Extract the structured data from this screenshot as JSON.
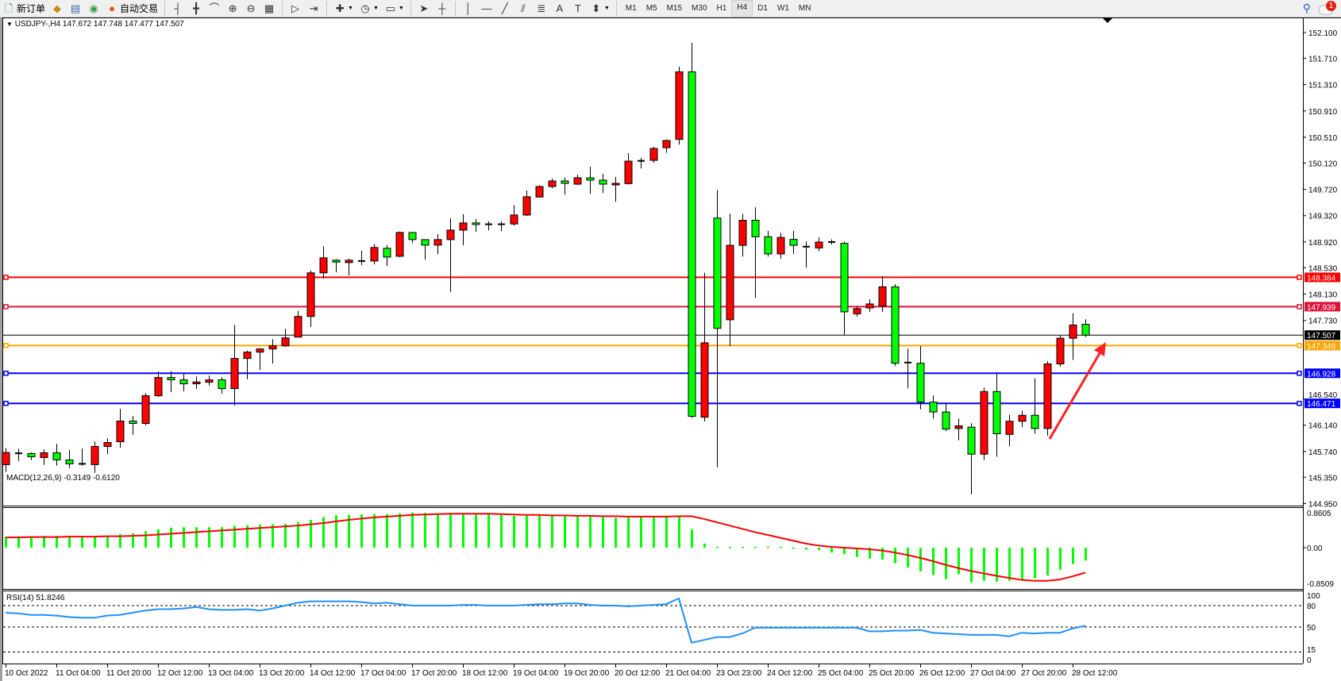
{
  "toolbar": {
    "items": [
      {
        "icon": "new-order-icon",
        "glyph": "🗋",
        "label": "新订单",
        "color": "#2a9a2a"
      },
      {
        "icon": "market-watch-icon",
        "glyph": "◆",
        "label": "",
        "color": "#d08a10"
      },
      {
        "icon": "data-window-icon",
        "glyph": "▤",
        "label": "",
        "color": "#3a6ab0"
      },
      {
        "icon": "navigator-icon",
        "glyph": "◉",
        "label": "",
        "color": "#3a9a4a"
      },
      {
        "icon": "autotrading-icon",
        "glyph": "●",
        "label": "自动交易",
        "color": "#e05010"
      }
    ],
    "chart_tools": [
      {
        "icon": "bar-chart-icon",
        "glyph": "┤"
      },
      {
        "icon": "candlestick-chart-icon",
        "glyph": "╋"
      },
      {
        "icon": "line-chart-icon",
        "glyph": "⌒"
      },
      {
        "icon": "zoom-in-icon",
        "glyph": "⊕"
      },
      {
        "icon": "zoom-out-icon",
        "glyph": "⊖"
      },
      {
        "icon": "tile-windows-icon",
        "glyph": "▦"
      }
    ],
    "scroll_tools": [
      {
        "icon": "auto-scroll-icon",
        "glyph": "▷"
      },
      {
        "icon": "chart-shift-icon",
        "glyph": "⇥"
      }
    ],
    "dropdowns": [
      {
        "icon": "indicators-icon",
        "glyph": "✚"
      },
      {
        "icon": "periods-clock-icon",
        "glyph": "◷"
      },
      {
        "icon": "templates-icon",
        "glyph": "▭"
      }
    ],
    "draw_tools": [
      {
        "icon": "cursor-icon",
        "glyph": "➤"
      },
      {
        "icon": "crosshair-icon",
        "glyph": "┼"
      },
      {
        "icon": "vertical-line-icon",
        "glyph": "│"
      },
      {
        "icon": "horizontal-line-icon",
        "glyph": "—"
      },
      {
        "icon": "trendline-icon",
        "glyph": "╱"
      },
      {
        "icon": "equidistant-channel-icon",
        "glyph": "⫽"
      },
      {
        "icon": "fibonacci-icon",
        "glyph": "≣"
      },
      {
        "icon": "text-icon",
        "glyph": "A"
      },
      {
        "icon": "text-label-icon",
        "glyph": "T"
      },
      {
        "icon": "arrows-icon",
        "glyph": "⬍"
      }
    ],
    "timeframes": [
      "M1",
      "M5",
      "M15",
      "M30",
      "H1",
      "H4",
      "D1",
      "W1",
      "MN"
    ],
    "active_timeframe": "H4",
    "notification_count": "1"
  },
  "chart": {
    "symbol_header": "USDJPY-,H4  147.672 147.748 147.477 147.507",
    "bull_color": "#ff0000",
    "bear_color": "#00ff00",
    "price_axis": [
      "152.100",
      "151.710",
      "151.310",
      "150.910",
      "150.510",
      "150.120",
      "149.720",
      "149.320",
      "148.920",
      "148.530",
      "148.130",
      "147.730",
      "146.540",
      "146.140",
      "145.740",
      "145.350",
      "144.950"
    ],
    "levels": [
      {
        "price": "148.384",
        "color": "#ff0000"
      },
      {
        "price": "147.939",
        "color": "#dc143c"
      },
      {
        "price": "147.349",
        "color": "#ffa500"
      },
      {
        "price": "146.928",
        "color": "#0000ff"
      },
      {
        "price": "146.471",
        "color": "#0000ff"
      }
    ],
    "bid": {
      "price": "147.507",
      "color": "#000000"
    },
    "arrow_color": "#ff2020",
    "time_axis": [
      "10 Oct 2022",
      "11 Oct 04:00",
      "11 Oct 20:00",
      "12 Oct 12:00",
      "13 Oct 04:00",
      "13 Oct 20:00",
      "14 Oct 12:00",
      "17 Oct 04:00",
      "17 Oct 20:00",
      "18 Oct 12:00",
      "19 Oct 04:00",
      "19 Oct 20:00",
      "20 Oct 12:00",
      "21 Oct 04:00",
      "23 Oct 23:00",
      "24 Oct 12:00",
      "25 Oct 04:00",
      "25 Oct 20:00",
      "26 Oct 12:00",
      "27 Oct 04:00",
      "27 Oct 20:00",
      "28 Oct 12:00"
    ]
  },
  "macd": {
    "label": "MACD(12,26,9) -0.3149 -0.6120",
    "axis": [
      "0.8605",
      "0.00",
      "-0.8509"
    ],
    "max": 0.8605,
    "min": -0.8509,
    "hist_color": "#00ff00",
    "signal_color": "#ff0000",
    "main": [
      0.27,
      0.28,
      0.28,
      0.29,
      0.29,
      0.29,
      0.28,
      0.29,
      0.3,
      0.33,
      0.35,
      0.4,
      0.45,
      0.49,
      0.5,
      0.5,
      0.5,
      0.5,
      0.53,
      0.55,
      0.56,
      0.57,
      0.58,
      0.62,
      0.68,
      0.75,
      0.79,
      0.8,
      0.81,
      0.82,
      0.82,
      0.84,
      0.86,
      0.85,
      0.84,
      0.84,
      0.85,
      0.84,
      0.82,
      0.8,
      0.78,
      0.78,
      0.79,
      0.78,
      0.77,
      0.76,
      0.76,
      0.75,
      0.73,
      0.74,
      0.76,
      0.76,
      0.77,
      0.78,
      0.45,
      0.1,
      0.02,
      0.02,
      0.02,
      0.02,
      0.02,
      0.02,
      -0.03,
      -0.05,
      -0.06,
      -0.12,
      -0.16,
      -0.23,
      -0.27,
      -0.29,
      -0.38,
      -0.48,
      -0.58,
      -0.67,
      -0.77,
      -0.65,
      -0.85,
      -0.81,
      -0.83,
      -0.81,
      -0.79,
      -0.75,
      -0.68,
      -0.54,
      -0.4,
      -0.3149
    ],
    "signal": [
      0.25,
      0.25,
      0.26,
      0.26,
      0.26,
      0.27,
      0.27,
      0.27,
      0.28,
      0.28,
      0.29,
      0.3,
      0.32,
      0.34,
      0.36,
      0.38,
      0.4,
      0.42,
      0.44,
      0.46,
      0.48,
      0.5,
      0.52,
      0.54,
      0.57,
      0.6,
      0.64,
      0.68,
      0.71,
      0.74,
      0.76,
      0.78,
      0.8,
      0.81,
      0.82,
      0.83,
      0.83,
      0.83,
      0.83,
      0.82,
      0.81,
      0.8,
      0.8,
      0.79,
      0.79,
      0.78,
      0.78,
      0.77,
      0.77,
      0.76,
      0.76,
      0.76,
      0.76,
      0.77,
      0.77,
      0.7,
      0.62,
      0.54,
      0.46,
      0.38,
      0.31,
      0.24,
      0.17,
      0.1,
      0.05,
      0.02,
      0.0,
      -0.02,
      -0.04,
      -0.07,
      -0.12,
      -0.18,
      -0.25,
      -0.33,
      -0.42,
      -0.5,
      -0.57,
      -0.63,
      -0.69,
      -0.74,
      -0.79,
      -0.81,
      -0.81,
      -0.78,
      -0.7,
      -0.612
    ]
  },
  "rsi": {
    "label": "RSI(14) 51.8246",
    "axis": [
      "100",
      "80",
      "50",
      "15",
      "0"
    ],
    "levels": [
      80,
      50,
      15
    ],
    "color": "#1e90ff",
    "values": [
      70,
      69,
      67,
      67,
      66,
      64,
      63,
      63,
      66,
      67,
      70,
      73,
      75,
      75,
      76,
      78,
      75,
      74,
      74,
      75,
      73,
      76,
      80,
      84,
      86,
      86,
      86,
      86,
      85,
      83,
      84,
      82,
      80,
      80,
      80,
      80,
      81,
      81,
      80,
      80,
      80,
      81,
      82,
      82,
      83,
      83,
      81,
      80,
      80,
      79,
      80,
      81,
      82,
      90,
      28,
      32,
      36,
      36,
      41,
      49,
      49,
      49,
      49,
      49,
      49,
      49,
      49,
      49,
      44,
      44,
      45,
      45,
      46,
      42,
      41,
      40,
      39,
      39,
      39,
      37,
      42,
      41,
      42,
      42,
      48,
      51.8246
    ]
  },
  "chart_data": {
    "type": "candlestick",
    "ylim": [
      144.95,
      152.1
    ],
    "ohlc": [
      [
        145.541,
        145.793,
        145.432,
        145.725
      ],
      [
        145.713,
        145.785,
        145.597,
        145.713
      ],
      [
        145.709,
        145.725,
        145.609,
        145.661
      ],
      [
        145.649,
        145.773,
        145.536,
        145.721
      ],
      [
        145.721,
        145.857,
        145.525,
        145.613
      ],
      [
        145.613,
        145.761,
        145.488,
        145.553
      ],
      [
        145.553,
        145.785,
        145.525,
        145.541
      ],
      [
        145.541,
        145.893,
        145.416,
        145.817
      ],
      [
        145.817,
        145.938,
        145.701,
        145.877
      ],
      [
        145.889,
        146.387,
        145.797,
        146.202
      ],
      [
        146.202,
        146.278,
        145.994,
        146.166
      ],
      [
        146.166,
        146.627,
        146.138,
        146.587
      ],
      [
        146.587,
        146.952,
        146.567,
        146.864
      ],
      [
        146.864,
        146.96,
        146.643,
        146.828
      ],
      [
        146.828,
        146.916,
        146.655,
        146.768
      ],
      [
        146.768,
        146.88,
        146.691,
        146.796
      ],
      [
        146.792,
        146.892,
        146.74,
        146.828
      ],
      [
        146.828,
        146.868,
        146.619,
        146.695
      ],
      [
        146.695,
        147.662,
        146.439,
        147.153
      ],
      [
        147.153,
        147.273,
        146.836,
        147.249
      ],
      [
        147.249,
        147.309,
        146.98,
        147.297
      ],
      [
        147.297,
        147.445,
        147.076,
        147.345
      ],
      [
        147.345,
        147.602,
        147.329,
        147.465
      ],
      [
        147.477,
        147.874,
        147.477,
        147.79
      ],
      [
        147.79,
        148.488,
        147.63,
        148.452
      ],
      [
        148.452,
        148.853,
        148.364,
        148.68
      ],
      [
        148.644,
        148.66,
        148.46,
        148.616
      ],
      [
        148.608,
        148.668,
        148.412,
        148.644
      ],
      [
        148.632,
        148.789,
        148.572,
        148.632
      ],
      [
        148.632,
        148.889,
        148.58,
        148.837
      ],
      [
        148.825,
        148.873,
        148.556,
        148.692
      ],
      [
        148.704,
        149.081,
        148.688,
        149.065
      ],
      [
        149.065,
        149.065,
        148.905,
        148.957
      ],
      [
        148.957,
        148.957,
        148.652,
        148.873
      ],
      [
        148.873,
        149.041,
        148.737,
        148.957
      ],
      [
        148.957,
        149.282,
        148.159,
        149.101
      ],
      [
        149.101,
        149.342,
        148.869,
        149.21
      ],
      [
        149.21,
        149.27,
        149.073,
        149.186
      ],
      [
        149.19,
        149.234,
        149.097,
        149.19
      ],
      [
        149.19,
        149.234,
        149.085,
        149.19
      ],
      [
        149.194,
        149.478,
        149.17,
        149.33
      ],
      [
        149.33,
        149.703,
        149.314,
        149.607
      ],
      [
        149.603,
        149.779,
        149.603,
        149.763
      ],
      [
        149.763,
        149.883,
        149.735,
        149.847
      ],
      [
        149.847,
        149.899,
        149.639,
        149.811
      ],
      [
        149.799,
        149.944,
        149.783,
        149.895
      ],
      [
        149.895,
        150.064,
        149.651,
        149.859
      ],
      [
        149.859,
        149.956,
        149.663,
        149.799
      ],
      [
        149.787,
        149.907,
        149.531,
        149.811
      ],
      [
        149.807,
        150.268,
        149.795,
        150.148
      ],
      [
        150.152,
        150.196,
        150.036,
        150.152
      ],
      [
        150.16,
        150.365,
        150.124,
        150.34
      ],
      [
        150.352,
        150.477,
        150.276,
        150.461
      ],
      [
        150.478,
        151.58,
        150.4,
        151.503
      ],
      [
        151.503,
        151.944,
        146.25,
        146.274
      ],
      [
        146.261,
        148.454,
        146.196,
        147.39
      ],
      [
        149.284,
        149.71,
        145.5,
        147.61
      ],
      [
        147.74,
        149.35,
        147.34,
        148.87
      ],
      [
        148.87,
        149.35,
        148.7,
        149.25
      ],
      [
        149.25,
        149.45,
        148.07,
        149.0
      ],
      [
        149.0,
        149.09,
        148.7,
        148.74
      ],
      [
        148.74,
        149.06,
        148.67,
        148.99
      ],
      [
        148.96,
        149.09,
        148.74,
        148.87
      ],
      [
        148.85,
        148.93,
        148.53,
        148.85
      ],
      [
        148.83,
        148.99,
        148.78,
        148.92
      ],
      [
        148.92,
        148.96,
        148.88,
        148.92
      ],
      [
        148.9,
        148.93,
        147.51,
        147.86
      ],
      [
        147.83,
        147.95,
        147.79,
        147.91
      ],
      [
        147.92,
        148.05,
        147.86,
        147.98
      ],
      [
        147.95,
        148.4,
        147.86,
        148.24
      ],
      [
        148.24,
        148.28,
        147.04,
        147.08
      ],
      [
        147.09,
        147.3,
        146.7,
        147.09
      ],
      [
        147.08,
        147.34,
        146.38,
        146.49
      ],
      [
        146.49,
        146.59,
        146.24,
        146.34
      ],
      [
        146.34,
        146.47,
        146.05,
        146.08
      ],
      [
        146.09,
        146.24,
        145.91,
        146.13
      ],
      [
        146.11,
        146.17,
        145.09,
        145.7
      ],
      [
        145.7,
        146.71,
        145.61,
        146.65
      ],
      [
        146.65,
        146.92,
        145.66,
        146.01
      ],
      [
        146.0,
        146.3,
        145.82,
        146.2
      ],
      [
        146.2,
        146.36,
        146.11,
        146.29
      ],
      [
        146.29,
        146.85,
        146.01,
        146.09
      ],
      [
        146.09,
        147.11,
        145.98,
        147.07
      ],
      [
        147.07,
        147.5,
        147.03,
        147.46
      ],
      [
        147.46,
        147.84,
        147.13,
        147.66
      ],
      [
        147.672,
        147.748,
        147.477,
        147.507
      ]
    ]
  }
}
